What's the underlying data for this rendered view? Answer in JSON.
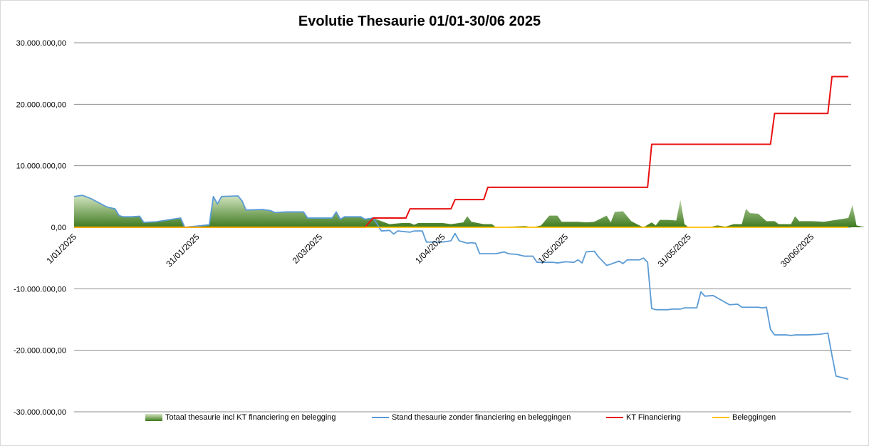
{
  "chart_data": {
    "type": "area",
    "title": "Evolutie Thesaurie 01/01-30/06 2025",
    "xlabel": "",
    "ylabel": "",
    "x_ticks": [
      "1/01/2025",
      "31/01/2025",
      "2/03/2025",
      "1/04/2025",
      "1/05/2025",
      "31/05/2025",
      "30/06/2025"
    ],
    "x_range_days": [
      0,
      180
    ],
    "ylim": [
      -30000000,
      30000000
    ],
    "y_ticks": [
      30000000,
      20000000,
      10000000,
      0,
      -10000000,
      -20000000,
      -30000000
    ],
    "y_tick_labels": [
      "30.000.000,00",
      "20.000.000,00",
      "10.000.000,00",
      "0,00",
      "-10.000.000,00",
      "-20.000.000,00",
      "-30.000.000,00"
    ],
    "grid": "horizontal",
    "legend_position": "bottom",
    "series": [
      {
        "name": "Totaal thesaurie incl KT financiering en belegging",
        "type": "area",
        "color": "#4e8a2e",
        "points": [
          [
            0,
            5000000
          ],
          [
            2,
            5200000
          ],
          [
            4,
            4700000
          ],
          [
            6,
            4000000
          ],
          [
            8,
            3300000
          ],
          [
            10,
            3000000
          ],
          [
            11,
            1900000
          ],
          [
            12,
            1700000
          ],
          [
            14,
            1700000
          ],
          [
            16,
            1800000
          ],
          [
            17,
            800000
          ],
          [
            20,
            900000
          ],
          [
            22,
            1100000
          ],
          [
            24,
            1300000
          ],
          [
            26,
            1500000
          ],
          [
            27,
            0
          ],
          [
            33,
            400000
          ],
          [
            34,
            5000000
          ],
          [
            35,
            3800000
          ],
          [
            36,
            5000000
          ],
          [
            40,
            5100000
          ],
          [
            41,
            4300000
          ],
          [
            42,
            2800000
          ],
          [
            46,
            2900000
          ],
          [
            48,
            2700000
          ],
          [
            49,
            2400000
          ],
          [
            52,
            2500000
          ],
          [
            56,
            2500000
          ],
          [
            57,
            1500000
          ],
          [
            63,
            1500000
          ],
          [
            64,
            2500000
          ],
          [
            65,
            1300000
          ],
          [
            66,
            1700000
          ],
          [
            70,
            1700000
          ],
          [
            71,
            1300000
          ],
          [
            73,
            1500000
          ],
          [
            75,
            1000000
          ],
          [
            77,
            500000
          ],
          [
            80,
            700000
          ],
          [
            82,
            700000
          ],
          [
            83,
            400000
          ],
          [
            84,
            700000
          ],
          [
            88,
            700000
          ],
          [
            90,
            700000
          ],
          [
            92,
            500000
          ],
          [
            95,
            800000
          ],
          [
            96,
            1800000
          ],
          [
            97,
            900000
          ],
          [
            100,
            500000
          ],
          [
            102,
            500000
          ],
          [
            103,
            0
          ],
          [
            110,
            200000
          ],
          [
            112,
            0
          ],
          [
            114,
            300000
          ],
          [
            116,
            1900000
          ],
          [
            118,
            1900000
          ],
          [
            119,
            900000
          ],
          [
            123,
            900000
          ],
          [
            125,
            800000
          ],
          [
            127,
            900000
          ],
          [
            130,
            1900000
          ],
          [
            131,
            800000
          ],
          [
            132,
            2500000
          ],
          [
            134,
            2600000
          ],
          [
            136,
            1000000
          ],
          [
            138,
            300000
          ],
          [
            139,
            0
          ],
          [
            141,
            800000
          ],
          [
            142,
            300000
          ],
          [
            143,
            1200000
          ],
          [
            145,
            1200000
          ],
          [
            147,
            1100000
          ],
          [
            148,
            4500000
          ],
          [
            149,
            500000
          ],
          [
            150,
            0
          ],
          [
            155,
            0
          ],
          [
            157,
            300000
          ],
          [
            159,
            100000
          ],
          [
            161,
            500000
          ],
          [
            163,
            500000
          ],
          [
            164,
            3000000
          ],
          [
            165,
            2300000
          ],
          [
            167,
            2200000
          ],
          [
            169,
            1000000
          ],
          [
            171,
            1000000
          ],
          [
            172,
            500000
          ],
          [
            175,
            500000
          ],
          [
            176,
            1800000
          ],
          [
            177,
            1000000
          ],
          [
            180,
            1000000
          ],
          [
            183,
            900000
          ],
          [
            186,
            1200000
          ],
          [
            189,
            1500000
          ],
          [
            190,
            3600000
          ],
          [
            191,
            300000
          ],
          [
            193,
            0
          ]
        ]
      },
      {
        "name": "Stand thesaurie zonder financiering en beleggingen",
        "type": "line",
        "color": "#5b9bd5",
        "points": [
          [
            0,
            5000000
          ],
          [
            2,
            5200000
          ],
          [
            4,
            4700000
          ],
          [
            6,
            4000000
          ],
          [
            8,
            3300000
          ],
          [
            10,
            3000000
          ],
          [
            11,
            1900000
          ],
          [
            12,
            1700000
          ],
          [
            14,
            1700000
          ],
          [
            16,
            1800000
          ],
          [
            17,
            800000
          ],
          [
            20,
            900000
          ],
          [
            22,
            1100000
          ],
          [
            24,
            1300000
          ],
          [
            26,
            1500000
          ],
          [
            27,
            0
          ],
          [
            33,
            400000
          ],
          [
            34,
            5000000
          ],
          [
            35,
            3800000
          ],
          [
            36,
            5000000
          ],
          [
            40,
            5100000
          ],
          [
            41,
            4300000
          ],
          [
            42,
            2800000
          ],
          [
            46,
            2900000
          ],
          [
            48,
            2700000
          ],
          [
            49,
            2400000
          ],
          [
            52,
            2500000
          ],
          [
            56,
            2500000
          ],
          [
            57,
            1500000
          ],
          [
            63,
            1500000
          ],
          [
            64,
            2500000
          ],
          [
            65,
            1300000
          ],
          [
            66,
            1700000
          ],
          [
            70,
            1700000
          ],
          [
            71,
            1300000
          ],
          [
            73,
            1500000
          ],
          [
            74,
            500000
          ],
          [
            75,
            -600000
          ],
          [
            77,
            -500000
          ],
          [
            78,
            -1100000
          ],
          [
            79,
            -600000
          ],
          [
            82,
            -800000
          ],
          [
            83,
            -600000
          ],
          [
            85,
            -600000
          ],
          [
            86,
            -2400000
          ],
          [
            90,
            -2400000
          ],
          [
            92,
            -2200000
          ],
          [
            93,
            -1000000
          ],
          [
            94,
            -2200000
          ],
          [
            96,
            -2600000
          ],
          [
            97,
            -2500000
          ],
          [
            98,
            -2600000
          ],
          [
            99,
            -4300000
          ],
          [
            103,
            -4300000
          ],
          [
            105,
            -4000000
          ],
          [
            106,
            -4300000
          ],
          [
            108,
            -4400000
          ],
          [
            110,
            -4700000
          ],
          [
            112,
            -4700000
          ],
          [
            113,
            -5700000
          ],
          [
            117,
            -5700000
          ],
          [
            118,
            -5800000
          ],
          [
            120,
            -5600000
          ],
          [
            122,
            -5700000
          ],
          [
            123,
            -5300000
          ],
          [
            124,
            -5800000
          ],
          [
            125,
            -4000000
          ],
          [
            127,
            -3900000
          ],
          [
            128,
            -4800000
          ],
          [
            130,
            -6200000
          ],
          [
            131,
            -6000000
          ],
          [
            133,
            -5500000
          ],
          [
            134,
            -5900000
          ],
          [
            135,
            -5300000
          ],
          [
            138,
            -5300000
          ],
          [
            139,
            -5000000
          ],
          [
            140,
            -5700000
          ],
          [
            141,
            -13200000
          ],
          [
            142,
            -13400000
          ],
          [
            145,
            -13400000
          ],
          [
            146,
            -13300000
          ],
          [
            148,
            -13300000
          ],
          [
            149,
            -13100000
          ],
          [
            152,
            -13100000
          ],
          [
            153,
            -10500000
          ],
          [
            154,
            -11200000
          ],
          [
            156,
            -11100000
          ],
          [
            160,
            -12600000
          ],
          [
            162,
            -12500000
          ],
          [
            163,
            -13000000
          ],
          [
            167,
            -13000000
          ],
          [
            168,
            -13100000
          ],
          [
            169,
            -13000000
          ],
          [
            170,
            -16600000
          ],
          [
            171,
            -17500000
          ],
          [
            174,
            -17500000
          ],
          [
            175,
            -17600000
          ],
          [
            176,
            -17500000
          ],
          [
            179,
            -17500000
          ],
          [
            182,
            -17400000
          ],
          [
            183,
            -17300000
          ],
          [
            184,
            -17200000
          ],
          [
            185,
            -20800000
          ],
          [
            186,
            -24200000
          ],
          [
            189,
            -24700000
          ]
        ]
      },
      {
        "name": "KT Financiering",
        "type": "line",
        "color": "#e81010",
        "points": [
          [
            0,
            0
          ],
          [
            71,
            0
          ],
          [
            73,
            1500000
          ],
          [
            81,
            1500000
          ],
          [
            82,
            3000000
          ],
          [
            92,
            3000000
          ],
          [
            93,
            4500000
          ],
          [
            100,
            4500000
          ],
          [
            101,
            6500000
          ],
          [
            117,
            6500000
          ],
          [
            140,
            6500000
          ],
          [
            141,
            13500000
          ],
          [
            170,
            13500000
          ],
          [
            171,
            18500000
          ],
          [
            184,
            18500000
          ],
          [
            185,
            24500000
          ],
          [
            189,
            24500000
          ]
        ]
      },
      {
        "name": "Beleggingen",
        "type": "line",
        "color": "#ffc000",
        "points": [
          [
            0,
            0
          ],
          [
            189,
            0
          ]
        ]
      }
    ]
  }
}
